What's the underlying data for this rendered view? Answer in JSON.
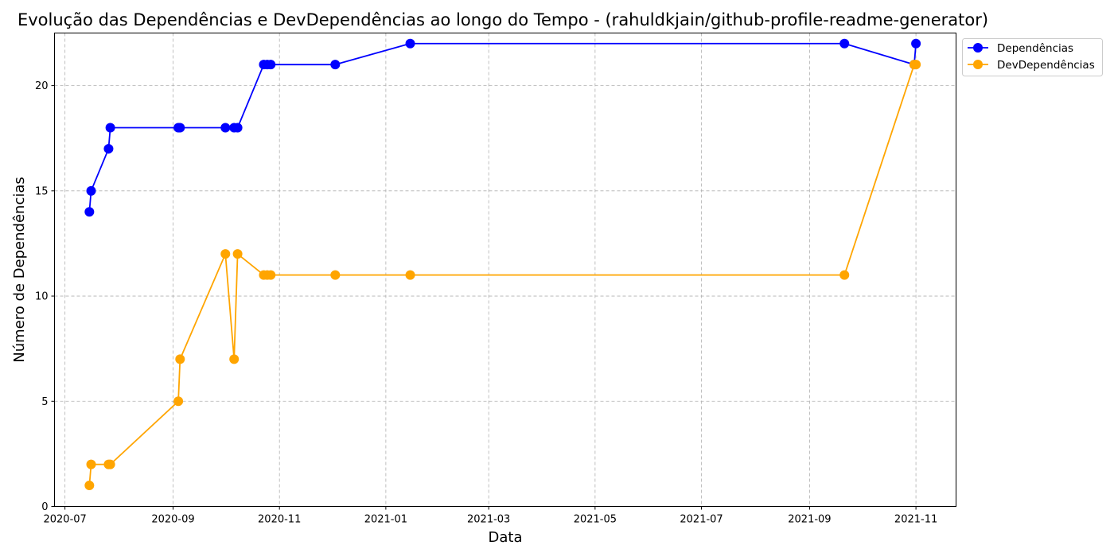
{
  "chart_data": {
    "type": "line",
    "title": "Evolução das Dependências e DevDependências ao longo do Tempo - (rahuldkjain/github-profile-readme-generator)",
    "xlabel": "Data",
    "ylabel": "Número de Dependências",
    "x_tick_labels": [
      "2020-07",
      "2020-09",
      "2020-11",
      "2021-01",
      "2021-03",
      "2021-05",
      "2021-07",
      "2021-09",
      "2021-11"
    ],
    "y_tick_labels": [
      "0",
      "5",
      "10",
      "15",
      "20"
    ],
    "y_ticks": [
      0,
      5,
      10,
      15,
      20
    ],
    "ylim": [
      0,
      22.5
    ],
    "xlim": [
      "2020-06-25",
      "2021-11-24"
    ],
    "grid": true,
    "legend_position": "upper-right-outside",
    "series": [
      {
        "name": "Dependências",
        "color": "#0000ff",
        "points": [
          [
            "2020-07-15",
            14
          ],
          [
            "2020-07-16",
            15
          ],
          [
            "2020-07-26",
            17
          ],
          [
            "2020-07-27",
            18
          ],
          [
            "2020-09-04",
            18
          ],
          [
            "2020-09-05",
            18
          ],
          [
            "2020-10-01",
            18
          ],
          [
            "2020-10-06",
            18
          ],
          [
            "2020-10-08",
            18
          ],
          [
            "2020-10-23",
            21
          ],
          [
            "2020-10-25",
            21
          ],
          [
            "2020-10-27",
            21
          ],
          [
            "2020-12-03",
            21
          ],
          [
            "2021-01-15",
            22
          ],
          [
            "2021-09-21",
            22
          ],
          [
            "2021-10-31",
            21
          ],
          [
            "2021-11-01",
            22
          ]
        ]
      },
      {
        "name": "DevDependências",
        "color": "#ffa500",
        "points": [
          [
            "2020-07-15",
            1
          ],
          [
            "2020-07-16",
            2
          ],
          [
            "2020-07-26",
            2
          ],
          [
            "2020-07-27",
            2
          ],
          [
            "2020-09-04",
            5
          ],
          [
            "2020-09-05",
            7
          ],
          [
            "2020-10-01",
            12
          ],
          [
            "2020-10-06",
            7
          ],
          [
            "2020-10-08",
            12
          ],
          [
            "2020-10-23",
            11
          ],
          [
            "2020-10-25",
            11
          ],
          [
            "2020-10-27",
            11
          ],
          [
            "2020-12-03",
            11
          ],
          [
            "2021-01-15",
            11
          ],
          [
            "2021-09-21",
            11
          ],
          [
            "2021-10-31",
            21
          ],
          [
            "2021-11-01",
            21
          ]
        ]
      }
    ]
  }
}
